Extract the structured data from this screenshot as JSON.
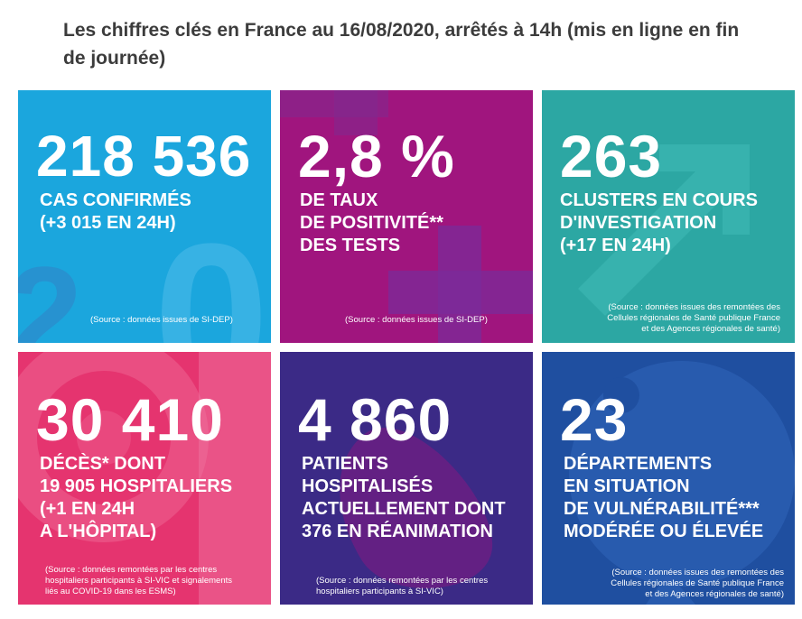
{
  "headline": "Les chiffres clés en France au 16/08/2020, arrêtés à 14h (mis en ligne en fin de journée)",
  "colors": {
    "tile1": "#1ba6dd",
    "tile2": "#a0157e",
    "tile3": "#2ca7a3",
    "tile4": "#e5346f",
    "tile5": "#3b2a86",
    "tile6": "#1f4fa0"
  },
  "tiles": [
    {
      "value": "218 536",
      "label": "CAS CONFIRMÉS\n(+3 015 EN 24H)",
      "source": "(Source : données issues de SI-DEP)"
    },
    {
      "value": "2,8 %",
      "label": "DE TAUX\nDE POSITIVITÉ**\nDES TESTS",
      "source": "(Source : données issues de SI-DEP)"
    },
    {
      "value": "263",
      "label": "CLUSTERS EN COURS\nD'INVESTIGATION\n(+17 EN 24H)",
      "source": "(Source : données issues des remontées des\nCellules régionales de Santé publique France\net des Agences régionales de santé)"
    },
    {
      "value": "30 410",
      "label": "DÉCÈS* DONT\n19 905 HOSPITALIERS\n(+1 EN 24H\nA L'HÔPITAL)",
      "source": "(Source : données remontées par les centres\nhospitaliers participants à SI-VIC et signalements\nliés au COVID-19 dans les ESMS)"
    },
    {
      "value": "4 860",
      "label": "PATIENTS\nHOSPITALISÉS\nACTUELLEMENT DONT\n376 EN RÉANIMATION",
      "source": "(Source : données remontées par les centres\nhospitaliers participants à SI-VIC)"
    },
    {
      "value": "23",
      "label": "DÉPARTEMENTS\nEN SITUATION\nDE VULNÉRABILITÉ***\nMODÉRÉE OU ÉLEVÉE",
      "source": "(Source : données issues des remontées des\nCellules régionales de Santé publique France\net des Agences régionales de santé)"
    }
  ]
}
